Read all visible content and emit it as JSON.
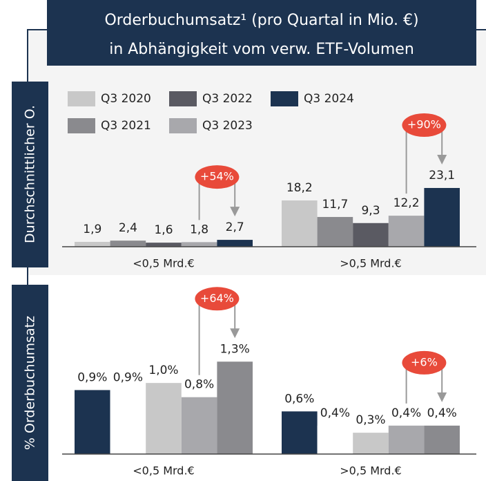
{
  "chart_data": [
    {
      "type": "bar",
      "title": "Orderbuchumsatz¹ (pro Quartal in Mio. €)",
      "subtitle": "in Abhängigkeit vom verw. ETF-Volumen",
      "ylabel": "Durchschnittlicher O.",
      "categories": [
        "<0,5 Mrd.€",
        ">0,5 Mrd.€"
      ],
      "series": [
        {
          "name": "Q3 2020",
          "color": "#c8c8c8",
          "values": [
            1.9,
            18.2
          ],
          "value_labels": [
            "1,9",
            "18,2"
          ]
        },
        {
          "name": "Q3 2021",
          "color": "#8a8a8e",
          "values": [
            2.4,
            11.7
          ],
          "value_labels": [
            "2,4",
            "11,7"
          ]
        },
        {
          "name": "Q3 2022",
          "color": "#5a5a62",
          "values": [
            1.6,
            9.3
          ],
          "value_labels": [
            "1,6",
            "9,3"
          ]
        },
        {
          "name": "Q3 2023",
          "color": "#a8a8ac",
          "values": [
            1.8,
            12.2
          ],
          "value_labels": [
            "1,8",
            "12,2"
          ]
        },
        {
          "name": "Q3 2024",
          "color": "#1c3350",
          "values": [
            2.7,
            23.1
          ],
          "value_labels": [
            "2,7",
            "23,1"
          ]
        }
      ],
      "annotations": [
        "+54%",
        "+90%"
      ],
      "ylim": [
        0,
        25
      ],
      "legend": true
    },
    {
      "type": "bar",
      "ylabel": "% Orderbuchumsatz",
      "categories": [
        "<0,5 Mrd.€",
        ">0,5 Mrd.€"
      ],
      "series": [
        {
          "color": "#1c3350",
          "values": [
            0.9,
            0.6
          ],
          "value_labels": [
            "0,9%",
            "0,6%"
          ]
        },
        {
          "color": "#ffffff",
          "values": [
            0.9,
            0.4
          ],
          "value_labels": [
            "0,9%",
            "0,4%"
          ]
        },
        {
          "color": "#c8c8c8",
          "values": [
            1.0,
            0.3
          ],
          "value_labels": [
            "1,0%",
            "0,3%"
          ]
        },
        {
          "color": "#a8a8ac",
          "values": [
            0.8,
            0.4
          ],
          "value_labels": [
            "0,8%",
            "0,4%"
          ]
        },
        {
          "color": "#8a8a8e",
          "values": [
            1.3,
            0.4
          ],
          "value_labels": [
            "1,3%",
            "0,4%"
          ]
        }
      ],
      "annotations": [
        "+64%",
        "+6%"
      ],
      "ylim": [
        0,
        1.4
      ]
    }
  ]
}
